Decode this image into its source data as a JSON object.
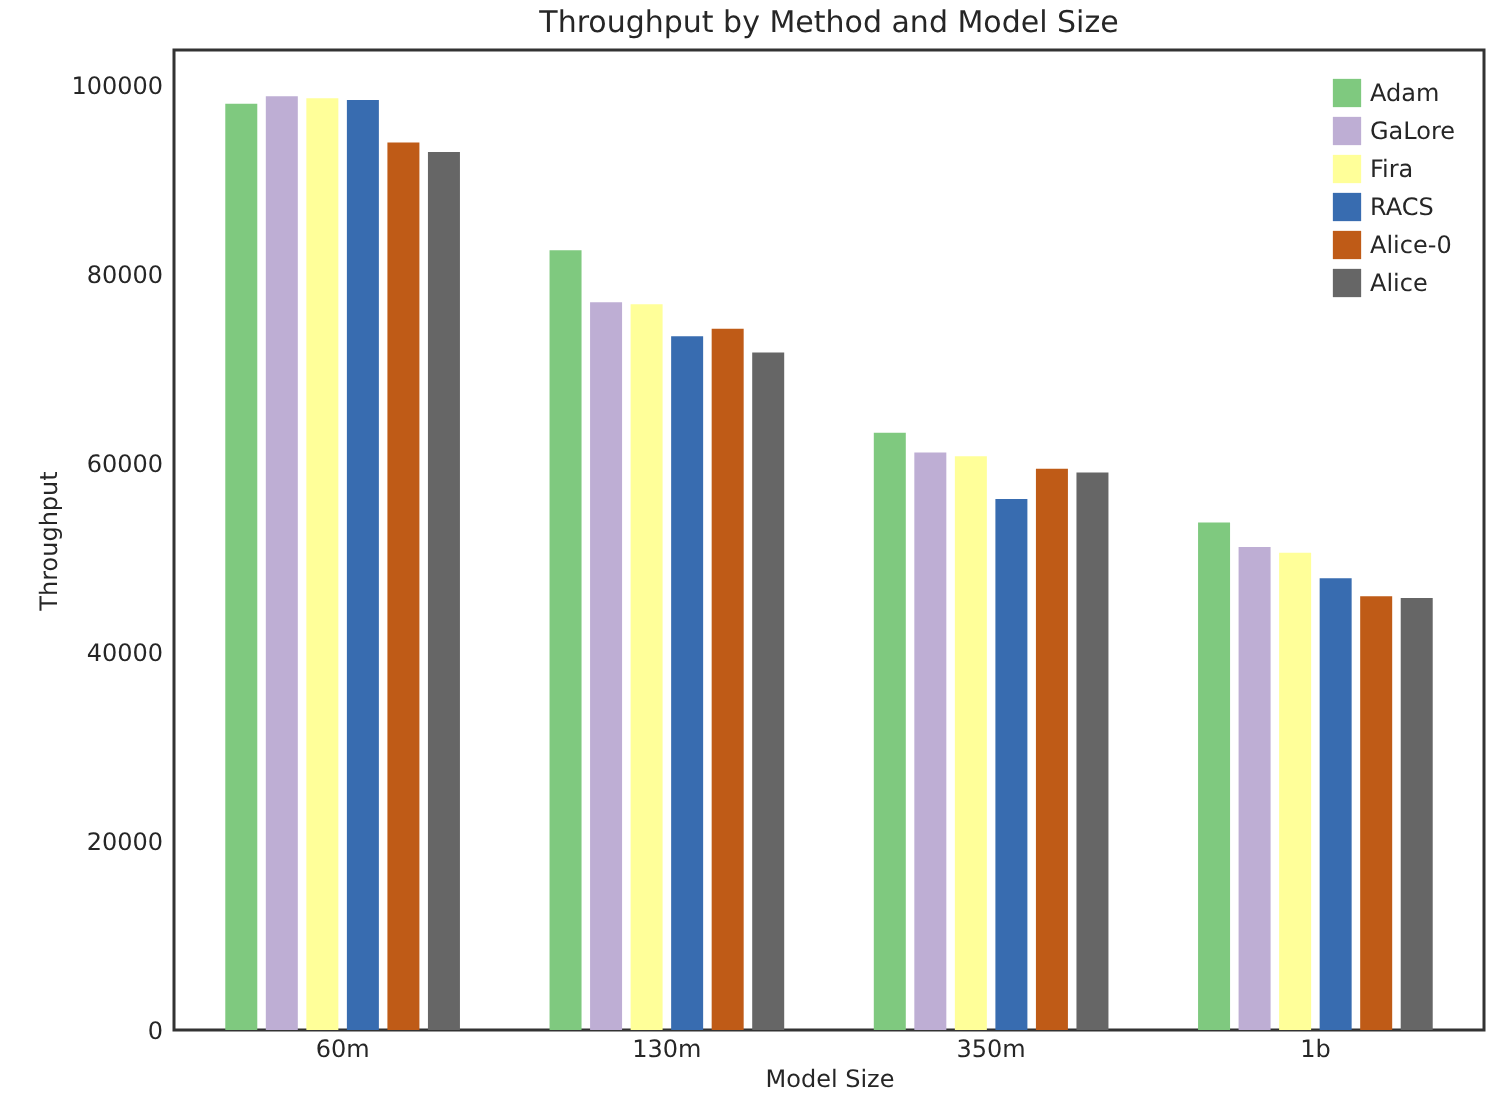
{
  "chart_data": {
    "type": "bar",
    "title": "Throughput by Method and Model Size",
    "xlabel": "Model Size",
    "ylabel": "Throughput",
    "categories": [
      "60m",
      "130m",
      "350m",
      "1b"
    ],
    "series": [
      {
        "name": "Adam",
        "color": "#7fc97f",
        "values": [
          98000,
          82500,
          63200,
          53700
        ]
      },
      {
        "name": "GaLore",
        "color": "#beaed4",
        "values": [
          98800,
          77000,
          61100,
          51100
        ]
      },
      {
        "name": "Fira",
        "color": "#ffff99",
        "values": [
          98600,
          76800,
          60700,
          50500
        ]
      },
      {
        "name": "RACS",
        "color": "#386cb0",
        "values": [
          98400,
          73400,
          56200,
          47800
        ]
      },
      {
        "name": "Alice-0",
        "color": "#bf5b17",
        "values": [
          93900,
          74200,
          59400,
          45900
        ]
      },
      {
        "name": "Alice",
        "color": "#666666",
        "values": [
          92900,
          71700,
          59000,
          45700
        ]
      }
    ],
    "ylim": [
      0,
      103700
    ],
    "yticks": [
      0,
      20000,
      40000,
      60000,
      80000,
      100000
    ],
    "grid": false,
    "legend": "top right"
  }
}
